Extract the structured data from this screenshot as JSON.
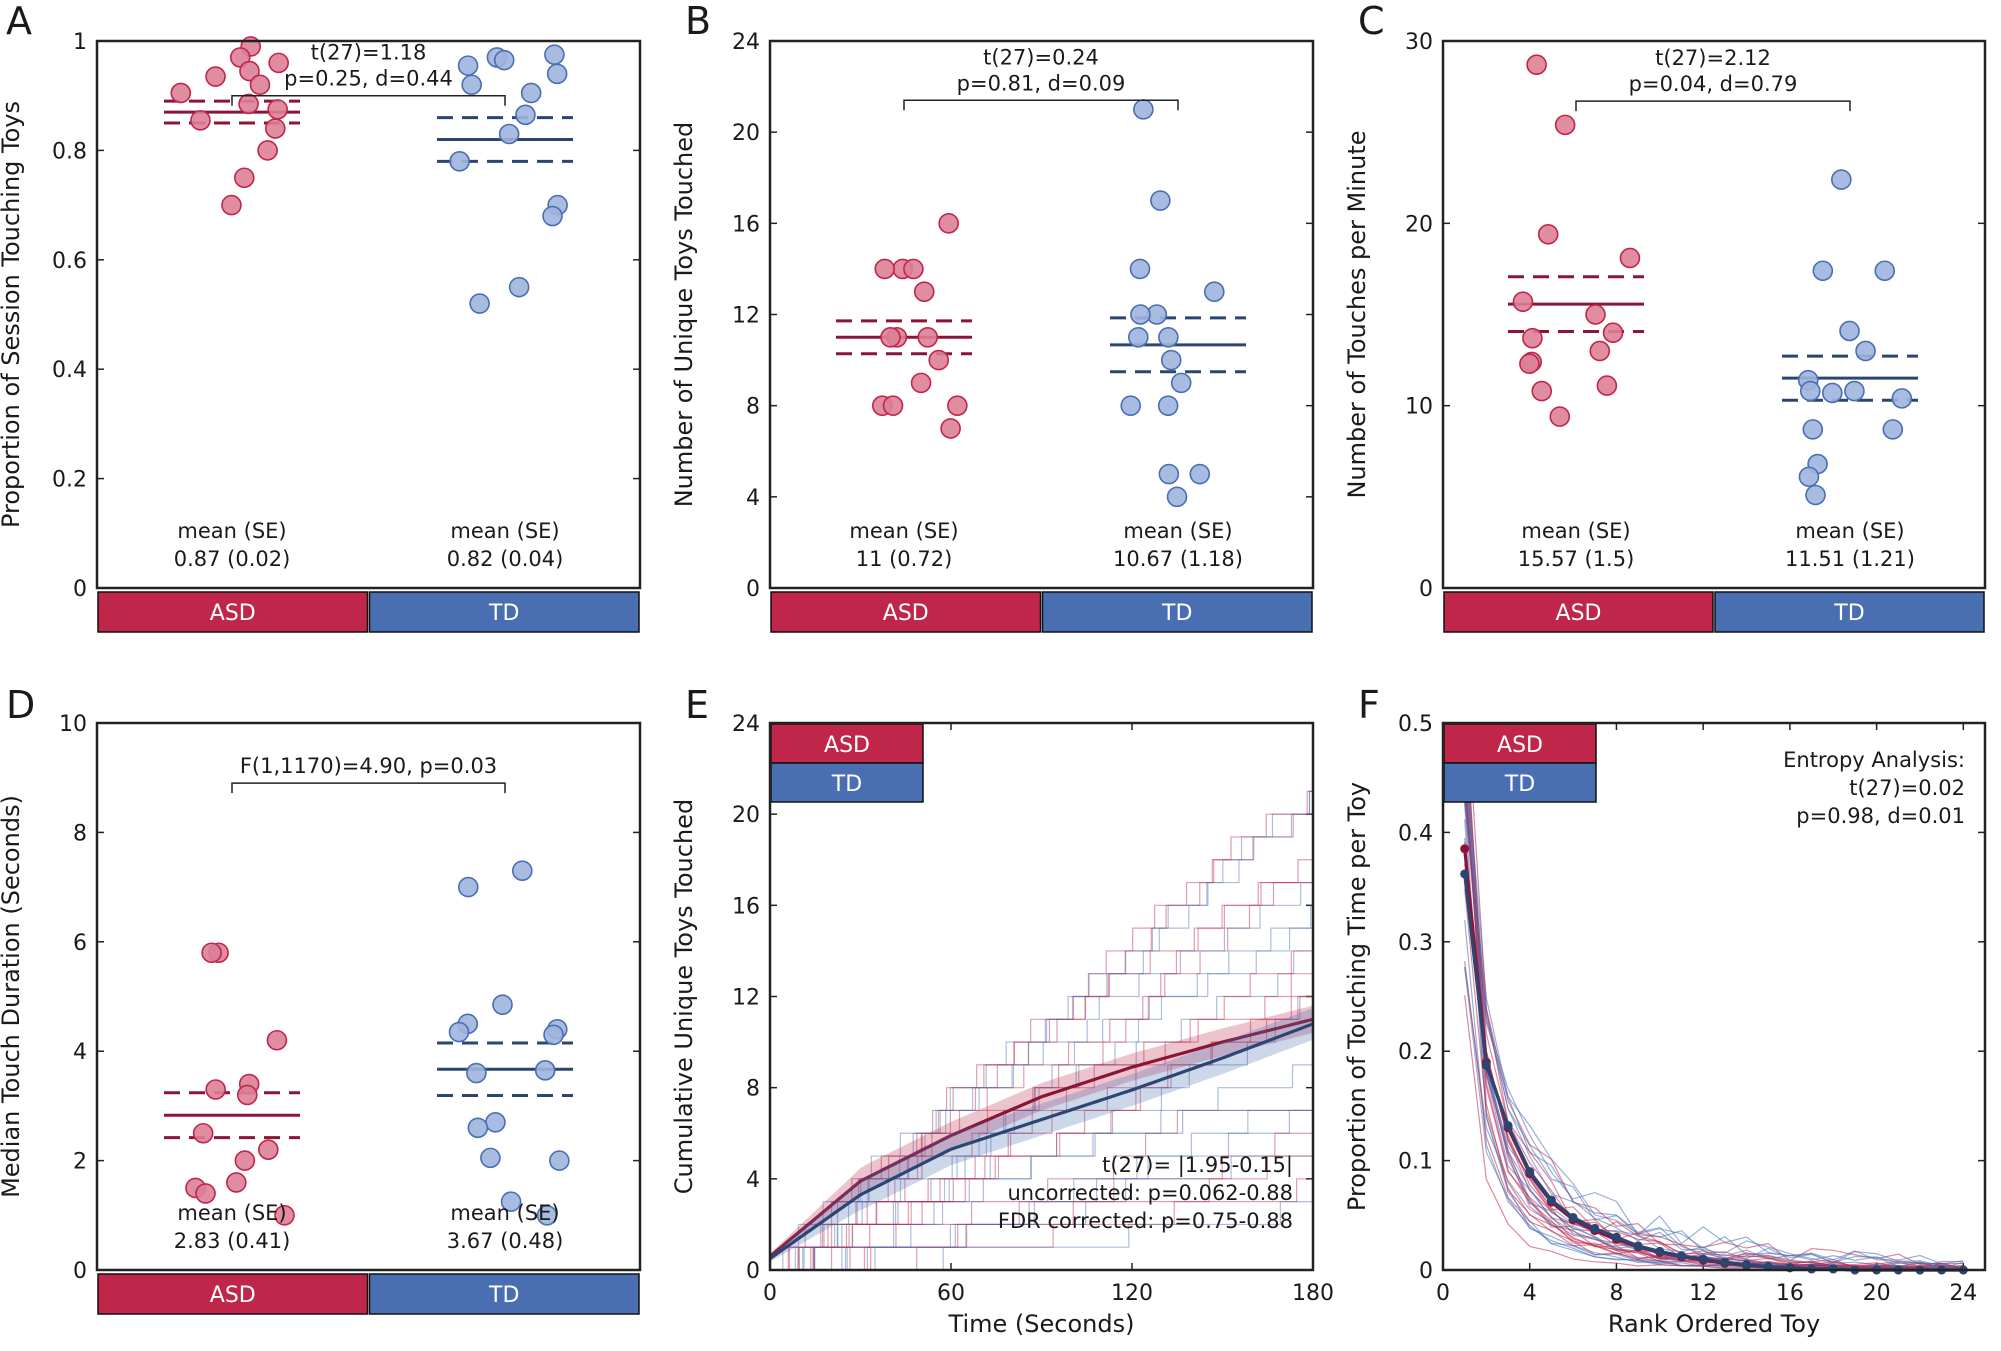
{
  "colors": {
    "asd": "#c0264a",
    "td": "#4a6eb2",
    "asd_dark": "#8b1538",
    "td_dark": "#2c4674",
    "asd_point": "#dd7f97",
    "td_point": "#9fb4dd"
  },
  "chart_data": [
    {
      "panel": "A",
      "type": "scatter",
      "ylabel": "Proportion of Session Touching Toys",
      "ylim": [
        0,
        1
      ],
      "yticks": [
        "0",
        "0.2",
        "0.4",
        "0.6",
        "0.8",
        "1"
      ],
      "ytick_values": [
        0,
        0.2,
        0.4,
        0.6,
        0.8,
        1
      ],
      "groups": [
        {
          "name": "ASD",
          "mean_label": "mean (SE)",
          "stat_label": "0.87 (0.02)",
          "mean": 0.87,
          "se": 0.02,
          "values": [
            0.99,
            0.97,
            0.96,
            0.945,
            0.935,
            0.92,
            0.905,
            0.885,
            0.875,
            0.855,
            0.84,
            0.8,
            0.75,
            0.7
          ]
        },
        {
          "name": "TD",
          "mean_label": "mean (SE)",
          "stat_label": "0.82 (0.04)",
          "mean": 0.82,
          "se": 0.04,
          "values": [
            0.975,
            0.97,
            0.965,
            0.955,
            0.94,
            0.92,
            0.905,
            0.865,
            0.83,
            0.78,
            0.7,
            0.68,
            0.55,
            0.52
          ]
        }
      ],
      "comparison": {
        "line1": "t(27)=1.18",
        "line2": "p=0.25, d=0.44",
        "y": 0.9
      }
    },
    {
      "panel": "B",
      "type": "scatter",
      "ylabel": "Number of Unique Toys Touched",
      "ylim": [
        0,
        24
      ],
      "yticks": [
        "0",
        "4",
        "8",
        "12",
        "16",
        "20",
        "24"
      ],
      "ytick_values": [
        0,
        4,
        8,
        12,
        16,
        20,
        24
      ],
      "groups": [
        {
          "name": "ASD",
          "mean_label": "mean (SE)",
          "stat_label": "11 (0.72)",
          "mean": 11,
          "se": 0.72,
          "values": [
            16,
            14,
            14,
            14,
            13,
            11,
            11,
            11,
            10,
            9,
            8,
            8,
            8,
            7
          ]
        },
        {
          "name": "TD",
          "mean_label": "mean (SE)",
          "stat_label": "10.67 (1.18)",
          "mean": 10.67,
          "se": 1.18,
          "values": [
            21,
            17,
            14,
            13,
            12,
            12,
            11,
            11,
            10,
            9,
            8,
            8,
            5,
            5,
            4
          ]
        }
      ],
      "comparison": {
        "line1": "t(27)=0.24",
        "line2": "p=0.81, d=0.09",
        "y": 21.4
      }
    },
    {
      "panel": "C",
      "type": "scatter",
      "ylabel": "Number of Touches per Minute",
      "ylim": [
        0,
        30
      ],
      "yticks": [
        "0",
        "10",
        "20",
        "30"
      ],
      "ytick_values": [
        0,
        10,
        20,
        30
      ],
      "groups": [
        {
          "name": "ASD",
          "mean_label": "mean (SE)",
          "stat_label": "15.57 (1.5)",
          "mean": 15.57,
          "se": 1.5,
          "values": [
            28.7,
            25.4,
            19.4,
            18.1,
            15.7,
            15.0,
            14.0,
            13.7,
            13.0,
            12.4,
            12.3,
            11.1,
            10.8,
            9.4
          ]
        },
        {
          "name": "TD",
          "mean_label": "mean (SE)",
          "stat_label": "11.51 (1.21)",
          "mean": 11.51,
          "se": 1.21,
          "values": [
            22.4,
            17.4,
            17.4,
            14.1,
            13.0,
            11.4,
            10.8,
            10.8,
            10.7,
            10.4,
            8.7,
            8.7,
            6.8,
            6.1,
            5.1
          ]
        }
      ],
      "comparison": {
        "line1": "t(27)=2.12",
        "line2": "p=0.04, d=0.79",
        "y": 26.7
      }
    },
    {
      "panel": "D",
      "type": "scatter",
      "ylabel": "Median Touch Duration (Seconds)",
      "ylim": [
        0,
        10
      ],
      "yticks": [
        "0",
        "2",
        "4",
        "6",
        "8",
        "10"
      ],
      "ytick_values": [
        0,
        2,
        4,
        6,
        8,
        10
      ],
      "groups": [
        {
          "name": "ASD",
          "mean_label": "mean (SE)",
          "stat_label": "2.83 (0.41)",
          "mean": 2.83,
          "se": 0.41,
          "values": [
            5.8,
            5.8,
            4.2,
            3.4,
            3.3,
            3.2,
            2.5,
            2.2,
            2.0,
            1.6,
            1.5,
            1.4,
            1.0
          ]
        },
        {
          "name": "TD",
          "mean_label": "mean (SE)",
          "stat_label": "3.67 (0.48)",
          "mean": 3.67,
          "se": 0.48,
          "values": [
            7.3,
            7.0,
            4.85,
            4.5,
            4.4,
            4.35,
            4.3,
            3.65,
            3.6,
            2.7,
            2.6,
            2.05,
            2.0,
            1.25,
            1.0
          ]
        }
      ],
      "comparison": {
        "line1": "F(1,1170)=4.90, p=0.03",
        "line2": "",
        "y": 8.9
      }
    },
    {
      "panel": "E",
      "type": "line",
      "xlabel": "Time (Seconds)",
      "ylabel": "Cumulative Unique Toys Touched",
      "xlim": [
        0,
        180
      ],
      "ylim": [
        0,
        24
      ],
      "xticks": [
        "0",
        "60",
        "120",
        "180"
      ],
      "xtick_values": [
        0,
        60,
        120,
        180
      ],
      "yticks": [
        "0",
        "4",
        "8",
        "12",
        "16",
        "20",
        "24"
      ],
      "ytick_values": [
        0,
        4,
        8,
        12,
        16,
        20,
        24
      ],
      "legend": [
        "ASD",
        "TD"
      ],
      "series": [
        {
          "name": "ASD mean",
          "x": [
            0,
            30,
            60,
            90,
            120,
            150,
            180
          ],
          "y": [
            0.6,
            3.9,
            5.9,
            7.6,
            8.9,
            10.0,
            11.0
          ],
          "se": 0.6
        },
        {
          "name": "TD mean",
          "x": [
            0,
            30,
            60,
            90,
            120,
            150,
            180
          ],
          "y": [
            0.5,
            3.3,
            5.3,
            6.6,
            7.9,
            9.3,
            10.8
          ],
          "se": 0.7
        }
      ],
      "annotation": [
        "t(27)= |1.95-0.15|",
        "uncorrected: p=0.062-0.88",
        "FDR corrected: p=0.75-0.88"
      ]
    },
    {
      "panel": "F",
      "type": "line",
      "xlabel": "Rank Ordered Toy",
      "ylabel": "Proportion of Touching Time per Toy",
      "xlim": [
        0,
        25
      ],
      "ylim": [
        0,
        0.5
      ],
      "xticks": [
        "0",
        "4",
        "8",
        "12",
        "16",
        "20",
        "24"
      ],
      "xtick_values": [
        0,
        4,
        8,
        12,
        16,
        20,
        24
      ],
      "yticks": [
        "0",
        "0.1",
        "0.2",
        "0.3",
        "0.4",
        "0.5"
      ],
      "ytick_values": [
        0,
        0.1,
        0.2,
        0.3,
        0.4,
        0.5
      ],
      "legend": [
        "ASD",
        "TD"
      ],
      "series": [
        {
          "name": "ASD mean",
          "x": [
            1,
            2,
            3,
            4,
            5,
            6,
            7,
            8,
            9,
            10,
            11,
            12,
            13,
            14,
            15,
            16,
            17,
            18,
            19,
            20,
            21,
            22,
            23,
            24
          ],
          "y": [
            0.385,
            0.19,
            0.13,
            0.088,
            0.062,
            0.046,
            0.036,
            0.028,
            0.021,
            0.016,
            0.012,
            0.009,
            0.006,
            0.004,
            0.003,
            0.002,
            0.001,
            0.001,
            0,
            0,
            0,
            0,
            0,
            0
          ]
        },
        {
          "name": "TD mean",
          "x": [
            1,
            2,
            3,
            4,
            5,
            6,
            7,
            8,
            9,
            10,
            11,
            12,
            13,
            14,
            15,
            16,
            17,
            18,
            19,
            20,
            21,
            22,
            23,
            24
          ],
          "y": [
            0.362,
            0.187,
            0.132,
            0.09,
            0.064,
            0.048,
            0.038,
            0.03,
            0.022,
            0.017,
            0.013,
            0.01,
            0.007,
            0.005,
            0.003,
            0.002,
            0.001,
            0.001,
            0,
            0,
            0,
            0,
            0,
            0
          ]
        }
      ],
      "annotation": [
        "Entropy Analysis:",
        "t(27)=0.02",
        "p=0.98, d=0.01"
      ]
    }
  ]
}
